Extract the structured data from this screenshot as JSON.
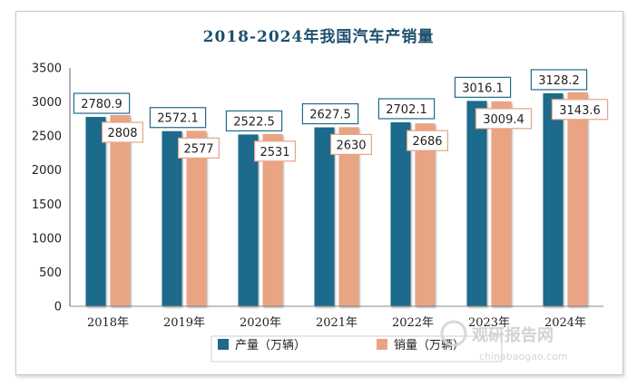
{
  "chart_data": {
    "type": "bar",
    "title": "2018-2024年我国汽车产销量",
    "categories": [
      "2018年",
      "2019年",
      "2020年",
      "2021年",
      "2022年",
      "2023年",
      "2024年"
    ],
    "series": [
      {
        "name": "产量（万辆）",
        "values": [
          2780.9,
          2572.1,
          2522.5,
          2627.5,
          2702.1,
          3016.1,
          3128.2
        ],
        "color": "#1f6a8c"
      },
      {
        "name": "销量（万辆）",
        "values": [
          2808,
          2577,
          2531,
          2630,
          2686,
          3009.4,
          3143.6
        ],
        "color": "#e9a484"
      }
    ],
    "data_labels": [
      [
        "2780.9",
        "2572.1",
        "2522.5",
        "2627.5",
        "2702.1",
        "3016.1",
        "3128.2"
      ],
      [
        "2808",
        "2577",
        "2531",
        "2630",
        "2686",
        "3009.4",
        "3143.6"
      ]
    ],
    "yticks": [
      "0",
      "500",
      "1000",
      "1500",
      "2000",
      "2500",
      "3000",
      "3500"
    ],
    "ylim": [
      0,
      3500
    ],
    "grid": false,
    "legend_position": "bottom"
  },
  "watermark": {
    "main": "观研报告网",
    "sub": "chinabaogao.com"
  }
}
